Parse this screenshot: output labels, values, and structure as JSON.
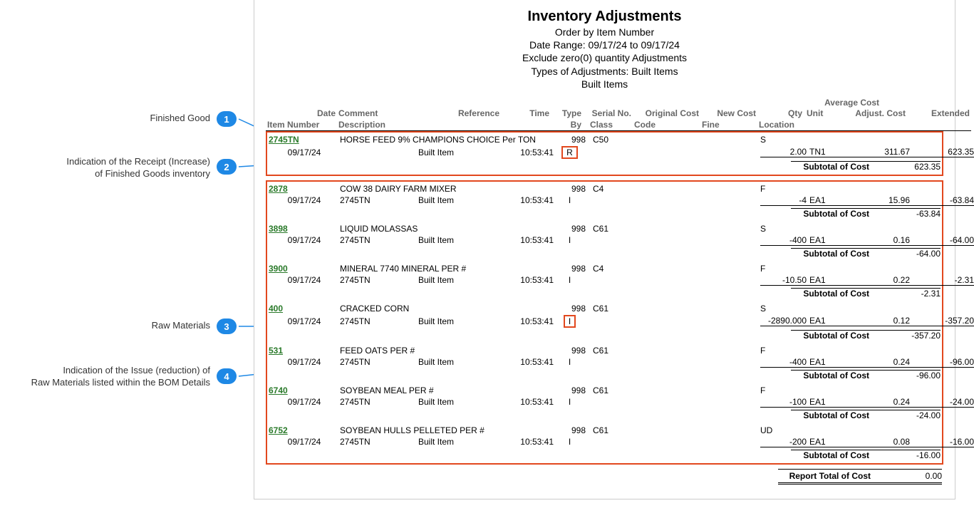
{
  "report": {
    "title": "Inventory Adjustments",
    "sub1": "Order by Item Number",
    "sub2": "Date Range: 09/17/24 to 09/17/24",
    "sub3": "Exclude zero(0) quantity Adjustments",
    "sub4": "Types of Adjustments: Built Items",
    "sub5": "Built Items",
    "avg_cost_label": "Average Cost",
    "headers1": {
      "date": "Date",
      "comment": "Comment",
      "reference": "Reference",
      "time": "Time",
      "type": "Type",
      "serialno": "Serial No.",
      "origcost": "Original Cost",
      "newcost": "New Cost",
      "qty": "Qty",
      "unit": "Unit",
      "adjcost": "Adjust. Cost",
      "extended": "Extended"
    },
    "headers2": {
      "itemno": "Item Number",
      "desc": "Description",
      "by": "By",
      "class": "Class",
      "code": "Code",
      "fine": "Fine",
      "location": "Location"
    },
    "subtotal_label": "Subtotal of Cost",
    "grand_label": "Report Total of Cost",
    "grand_value": "0.00"
  },
  "finished": {
    "item": "2745TN",
    "desc": "HORSE FEED 9% CHAMPIONS CHOICE Per TON",
    "by": "998",
    "class": "C50",
    "location": "S",
    "date": "09/17/24",
    "ref": "Built Item",
    "time": "10:53:41",
    "type": "R",
    "qty": "2.00",
    "unit": "TN1",
    "adjcost": "311.67",
    "ext": "623.35",
    "subtotal": "623.35"
  },
  "raw": [
    {
      "item": "2878",
      "desc": "COW 38 DAIRY FARM MIXER",
      "by": "998",
      "class": "C4",
      "location": "F",
      "date": "09/17/24",
      "comment": "2745TN",
      "ref": "Built Item",
      "time": "10:53:41",
      "type": "I",
      "qty": "-4",
      "unit": "EA1",
      "adjcost": "15.96",
      "ext": "-63.84",
      "subtotal": "-63.84"
    },
    {
      "item": "3898",
      "desc": "LIQUID MOLASSAS",
      "by": "998",
      "class": "C61",
      "location": "S",
      "date": "09/17/24",
      "comment": "2745TN",
      "ref": "Built Item",
      "time": "10:53:41",
      "type": "I",
      "qty": "-400",
      "unit": "EA1",
      "adjcost": "0.16",
      "ext": "-64.00",
      "subtotal": "-64.00"
    },
    {
      "item": "3900",
      "desc": "MINERAL 7740 MINERAL PER #",
      "by": "998",
      "class": "C4",
      "location": "F",
      "date": "09/17/24",
      "comment": "2745TN",
      "ref": "Built Item",
      "time": "10:53:41",
      "type": "I",
      "qty": "-10.50",
      "unit": "EA1",
      "adjcost": "0.22",
      "ext": "-2.31",
      "subtotal": "-2.31"
    },
    {
      "item": "400",
      "desc": "CRACKED CORN",
      "by": "998",
      "class": "C61",
      "location": "S",
      "date": "09/17/24",
      "comment": "2745TN",
      "ref": "Built Item",
      "time": "10:53:41",
      "type": "I",
      "type_boxed": true,
      "qty": "-2890.000",
      "unit": "EA1",
      "adjcost": "0.12",
      "ext": "-357.20",
      "subtotal": "-357.20"
    },
    {
      "item": "531",
      "desc": "FEED OATS PER #",
      "by": "998",
      "class": "C61",
      "location": "F",
      "date": "09/17/24",
      "comment": "2745TN",
      "ref": "Built Item",
      "time": "10:53:41",
      "type": "I",
      "qty": "-400",
      "unit": "EA1",
      "adjcost": "0.24",
      "ext": "-96.00",
      "subtotal": "-96.00"
    },
    {
      "item": "6740",
      "desc": "SOYBEAN MEAL PER #",
      "by": "998",
      "class": "C61",
      "location": "F",
      "date": "09/17/24",
      "comment": "2745TN",
      "ref": "Built Item",
      "time": "10:53:41",
      "type": "I",
      "qty": "-100",
      "unit": "EA1",
      "adjcost": "0.24",
      "ext": "-24.00",
      "subtotal": "-24.00"
    },
    {
      "item": "6752",
      "desc": "SOYBEAN HULLS PELLETED PER #",
      "by": "998",
      "class": "C61",
      "location": "UD",
      "date": "09/17/24",
      "comment": "2745TN",
      "ref": "Built Item",
      "time": "10:53:41",
      "type": "I",
      "qty": "-200",
      "unit": "EA1",
      "adjcost": "0.08",
      "ext": "-16.00",
      "subtotal": "-16.00"
    }
  ],
  "callouts": {
    "c1": "Finished Good",
    "c2a": "Indication of the Receipt (Increase)",
    "c2b": "of Finished Goods inventory",
    "c3": "Raw Materials",
    "c4a": "Indication of the Issue (reduction) of",
    "c4b": "Raw Materials listed within the BOM Details"
  },
  "style": {
    "badge_color": "#1e88e5",
    "box_color": "#e2481e",
    "leader_color": "#1e88e5"
  }
}
